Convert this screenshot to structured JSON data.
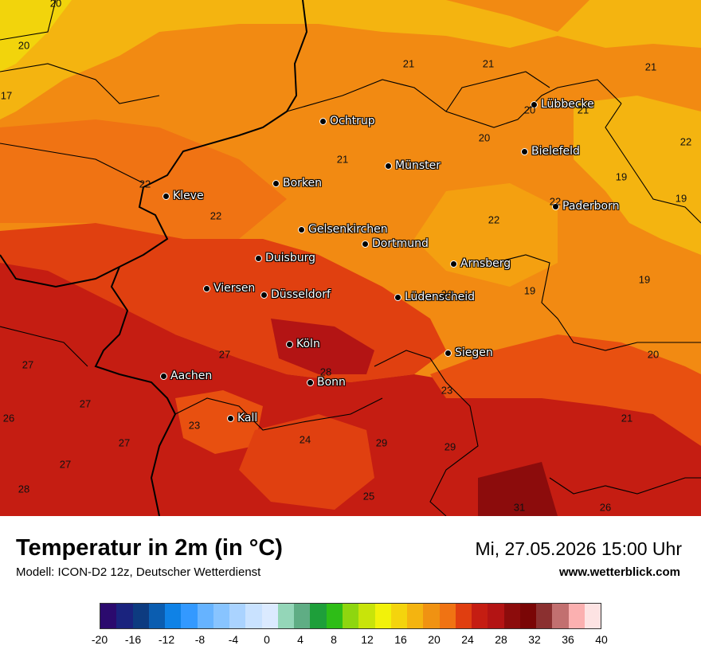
{
  "map": {
    "cities": [
      {
        "name": "Ochtrup"
      },
      {
        "name": "Lübbecke"
      },
      {
        "name": "Bielefeld"
      },
      {
        "name": "Münster"
      },
      {
        "name": "Borken"
      },
      {
        "name": "Kleve"
      },
      {
        "name": "Paderborn"
      },
      {
        "name": "Gelsenkirchen"
      },
      {
        "name": "Dortmund"
      },
      {
        "name": "Duisburg"
      },
      {
        "name": "Arnsberg"
      },
      {
        "name": "Viersen"
      },
      {
        "name": "Düsseldorf"
      },
      {
        "name": "Lüdenscheid"
      },
      {
        "name": "Köln"
      },
      {
        "name": "Siegen"
      },
      {
        "name": "Aachen"
      },
      {
        "name": "Bonn"
      },
      {
        "name": "Kall"
      }
    ],
    "temp_labels": [
      "20",
      "20",
      "17",
      "21",
      "21",
      "21",
      "20",
      "21",
      "20",
      "22",
      "21",
      "22",
      "19",
      "19",
      "22",
      "22",
      "22",
      "19",
      "20",
      "19",
      "27",
      "27",
      "28",
      "27",
      "23",
      "20",
      "26",
      "27",
      "27",
      "23",
      "21",
      "24",
      "29",
      "28",
      "29",
      "25",
      "31",
      "26"
    ]
  },
  "header": {
    "title": "Temperatur in 2m (in °C)",
    "model": "Modell: ICON-D2 12z, Deutscher Wetterdienst",
    "datetime": "Mi, 27.05.2026 15:00 Uhr",
    "website": "www.wetterblick.com"
  },
  "legend": {
    "colors": [
      "#2b0a6e",
      "#1a237e",
      "#0d3b80",
      "#0b5db0",
      "#0f82e6",
      "#3399ff",
      "#66b3ff",
      "#88c4ff",
      "#aad3ff",
      "#c9e2ff",
      "#dbeaff",
      "#94d6b8",
      "#5fad84",
      "#1e9f3a",
      "#2ebd17",
      "#8ed60f",
      "#c8e40a",
      "#f2f20a",
      "#f4d40d",
      "#f4b410",
      "#f09212",
      "#f07313",
      "#e03e10",
      "#c51d12",
      "#b31414",
      "#8c0c0c",
      "#7a0606",
      "#8b3030",
      "#c27070",
      "#fbb0b0",
      "#fde3e3"
    ],
    "ticks": [
      "-20",
      "-16",
      "-12",
      "-8",
      "-4",
      "0",
      "4",
      "8",
      "12",
      "16",
      "20",
      "24",
      "28",
      "32",
      "36",
      "40"
    ],
    "tick_range": [
      -20,
      40
    ]
  }
}
